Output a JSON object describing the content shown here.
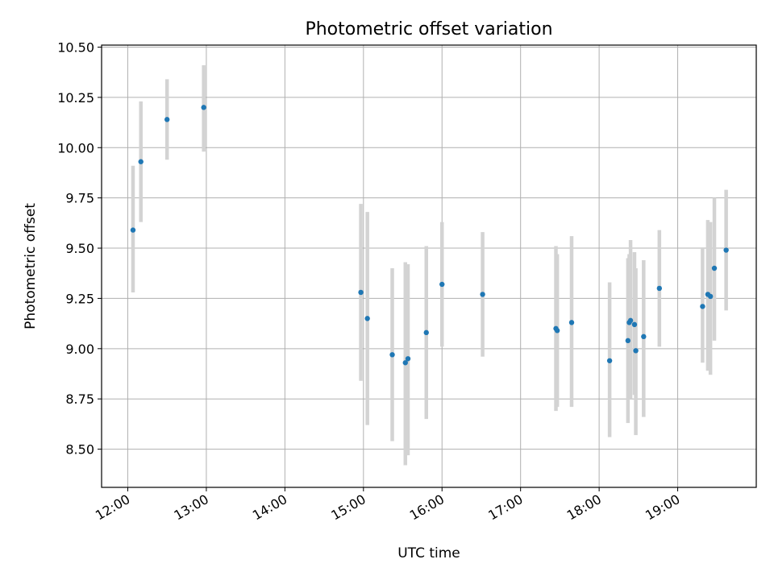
{
  "chart_data": {
    "type": "scatter",
    "title": "Photometric offset variation",
    "xlabel": "UTC time",
    "ylabel": "Photometric offset",
    "xlim": [
      "11:40",
      "20:00"
    ],
    "ylim": [
      8.31,
      10.51
    ],
    "xticks": [
      "12:00",
      "13:00",
      "14:00",
      "15:00",
      "16:00",
      "17:00",
      "18:00",
      "19:00"
    ],
    "yticks": [
      "8.50",
      "8.75",
      "9.00",
      "9.25",
      "9.50",
      "9.75",
      "10.00",
      "10.25",
      "10.50"
    ],
    "grid": true,
    "colors": {
      "point": "#1f77b4",
      "errorbar": "#d3d3d3",
      "grid": "#b0b0b0"
    },
    "points": [
      {
        "x": "12:04",
        "y": 9.59,
        "ylow": 9.28,
        "yhigh": 9.91
      },
      {
        "x": "12:10",
        "y": 9.93,
        "ylow": 9.63,
        "yhigh": 10.23
      },
      {
        "x": "12:30",
        "y": 10.14,
        "ylow": 9.94,
        "yhigh": 10.34
      },
      {
        "x": "12:58",
        "y": 10.2,
        "ylow": 9.98,
        "yhigh": 10.41
      },
      {
        "x": "14:58",
        "y": 9.28,
        "ylow": 8.84,
        "yhigh": 9.72
      },
      {
        "x": "15:03",
        "y": 9.15,
        "ylow": 8.62,
        "yhigh": 9.68
      },
      {
        "x": "15:22",
        "y": 8.97,
        "ylow": 8.54,
        "yhigh": 9.4
      },
      {
        "x": "15:32",
        "y": 8.93,
        "ylow": 8.42,
        "yhigh": 9.43
      },
      {
        "x": "15:34",
        "y": 8.95,
        "ylow": 8.47,
        "yhigh": 9.42
      },
      {
        "x": "15:48",
        "y": 9.08,
        "ylow": 8.65,
        "yhigh": 9.51
      },
      {
        "x": "16:00",
        "y": 9.32,
        "ylow": 9.01,
        "yhigh": 9.63
      },
      {
        "x": "16:31",
        "y": 9.27,
        "ylow": 8.96,
        "yhigh": 9.58
      },
      {
        "x": "17:27",
        "y": 9.1,
        "ylow": 8.69,
        "yhigh": 9.51
      },
      {
        "x": "17:28",
        "y": 9.09,
        "ylow": 8.71,
        "yhigh": 9.47
      },
      {
        "x": "17:39",
        "y": 9.13,
        "ylow": 8.71,
        "yhigh": 9.56
      },
      {
        "x": "18:08",
        "y": 8.94,
        "ylow": 8.56,
        "yhigh": 9.33
      },
      {
        "x": "18:22",
        "y": 9.04,
        "ylow": 8.63,
        "yhigh": 9.45
      },
      {
        "x": "18:23",
        "y": 9.13,
        "ylow": 8.79,
        "yhigh": 9.47
      },
      {
        "x": "18:24",
        "y": 9.14,
        "ylow": 8.75,
        "yhigh": 9.54
      },
      {
        "x": "18:27",
        "y": 9.12,
        "ylow": 8.77,
        "yhigh": 9.48
      },
      {
        "x": "18:28",
        "y": 8.99,
        "ylow": 8.57,
        "yhigh": 9.4
      },
      {
        "x": "18:34",
        "y": 9.06,
        "ylow": 8.66,
        "yhigh": 9.44
      },
      {
        "x": "18:46",
        "y": 9.3,
        "ylow": 9.01,
        "yhigh": 9.59
      },
      {
        "x": "19:19",
        "y": 9.21,
        "ylow": 8.93,
        "yhigh": 9.5
      },
      {
        "x": "19:23",
        "y": 9.27,
        "ylow": 8.89,
        "yhigh": 9.64
      },
      {
        "x": "19:25",
        "y": 9.26,
        "ylow": 8.87,
        "yhigh": 9.63
      },
      {
        "x": "19:28",
        "y": 9.4,
        "ylow": 9.04,
        "yhigh": 9.75
      },
      {
        "x": "19:37",
        "y": 9.49,
        "ylow": 9.19,
        "yhigh": 9.79
      }
    ]
  }
}
